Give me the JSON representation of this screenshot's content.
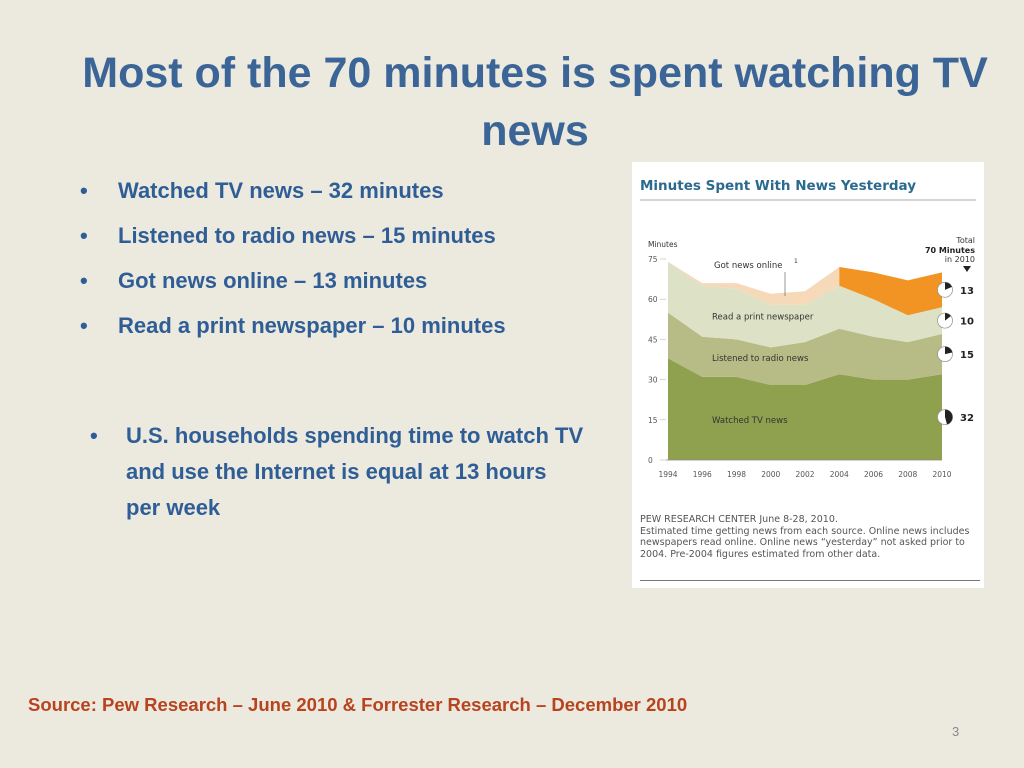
{
  "slide": {
    "title": "Most of the 70 minutes is spent watching TV news",
    "bullets": [
      "Watched TV news – 32 minutes",
      "Listened to radio news – 15 minutes",
      "Got news online – 13 minutes",
      "Read a print newspaper – 10 minutes"
    ],
    "bullets2": [
      "U.S. households spending time to watch TV and use the Internet is equal at 13 hours per week"
    ],
    "source": "Source:  Pew Research – June 2010 & Forrester Research – December 2010",
    "page_number": "3"
  },
  "chart_footnote": [
    "PEW RESEARCH CENTER June 8-28, 2010.",
    "Estimated time getting news from each source. Online news includes newspapers read online. Online news “yesterday” not asked prior to 2004. Pre-2004 figures estimated from other data."
  ],
  "colors": {
    "tv": "#8fa04f",
    "radio": "#b7bb86",
    "print": "#dde2c6",
    "online_pre2004": "#f6d9b8",
    "online": "#f29423",
    "title_blue": "#2b6a8f"
  },
  "chart_data": {
    "type": "area",
    "stacked": true,
    "title": "Minutes Spent With News Yesterday",
    "ylabel": "Minutes",
    "ylim": [
      0,
      75
    ],
    "yticks": [
      0,
      15,
      30,
      45,
      60,
      75
    ],
    "x": [
      "1994",
      "1996",
      "1998",
      "2000",
      "2002",
      "2004",
      "2006",
      "2008",
      "2010"
    ],
    "series": [
      {
        "name": "Watched TV news",
        "values": [
          38,
          31,
          31,
          28,
          28,
          32,
          30,
          30,
          32
        ]
      },
      {
        "name": "Listened to radio news",
        "values": [
          17,
          15,
          14,
          14,
          16,
          17,
          16,
          14,
          15
        ]
      },
      {
        "name": "Read a print newspaper",
        "values": [
          19,
          19,
          19,
          16,
          14,
          16,
          14,
          10,
          10
        ]
      },
      {
        "name": "Got news online",
        "values": [
          0,
          1,
          2,
          4,
          5,
          7,
          10,
          13,
          13
        ]
      }
    ],
    "online_label_suffix": "1",
    "total_label": {
      "line1": "Total",
      "line2": "70 Minutes",
      "line3": "in 2010"
    },
    "end_labels": [
      "13",
      "10",
      "15",
      "32"
    ]
  }
}
